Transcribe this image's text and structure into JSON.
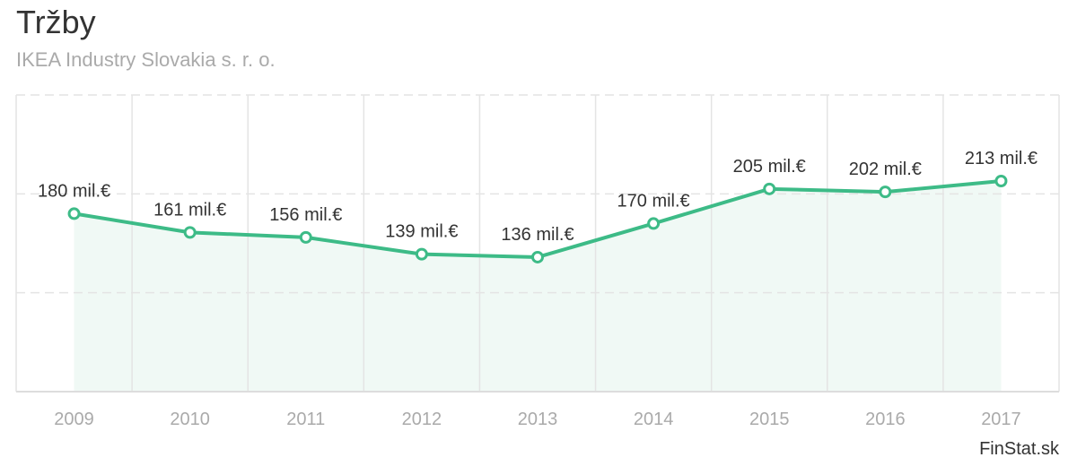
{
  "header": {
    "title": "Tržby",
    "subtitle": "IKEA Industry Slovakia s. r. o."
  },
  "footer": {
    "brand": "FinStat.sk"
  },
  "colors": {
    "line": "#3dbb87",
    "fill": "#f0f9f5",
    "grid": "#e4e4e4",
    "tick": "#aaaaaa",
    "label": "#333333"
  },
  "chart_data": {
    "type": "line",
    "title": "Tržby",
    "subtitle": "IKEA Industry Slovakia s. r. o.",
    "xlabel": "",
    "ylabel": "",
    "categories": [
      "2009",
      "2010",
      "2011",
      "2012",
      "2013",
      "2014",
      "2015",
      "2016",
      "2017"
    ],
    "values": [
      180,
      161,
      156,
      139,
      136,
      170,
      205,
      202,
      213
    ],
    "data_labels": [
      "180 mil.€",
      "161 mil.€",
      "156 mil.€",
      "139 mil.€",
      "136 mil.€",
      "170 mil.€",
      "205 mil.€",
      "202 mil.€",
      "213 mil.€"
    ],
    "unit": "mil.€",
    "ylim": [
      0,
      300
    ],
    "y_gridlines": [
      100,
      200,
      300
    ],
    "grid": true,
    "area_fill": true
  }
}
